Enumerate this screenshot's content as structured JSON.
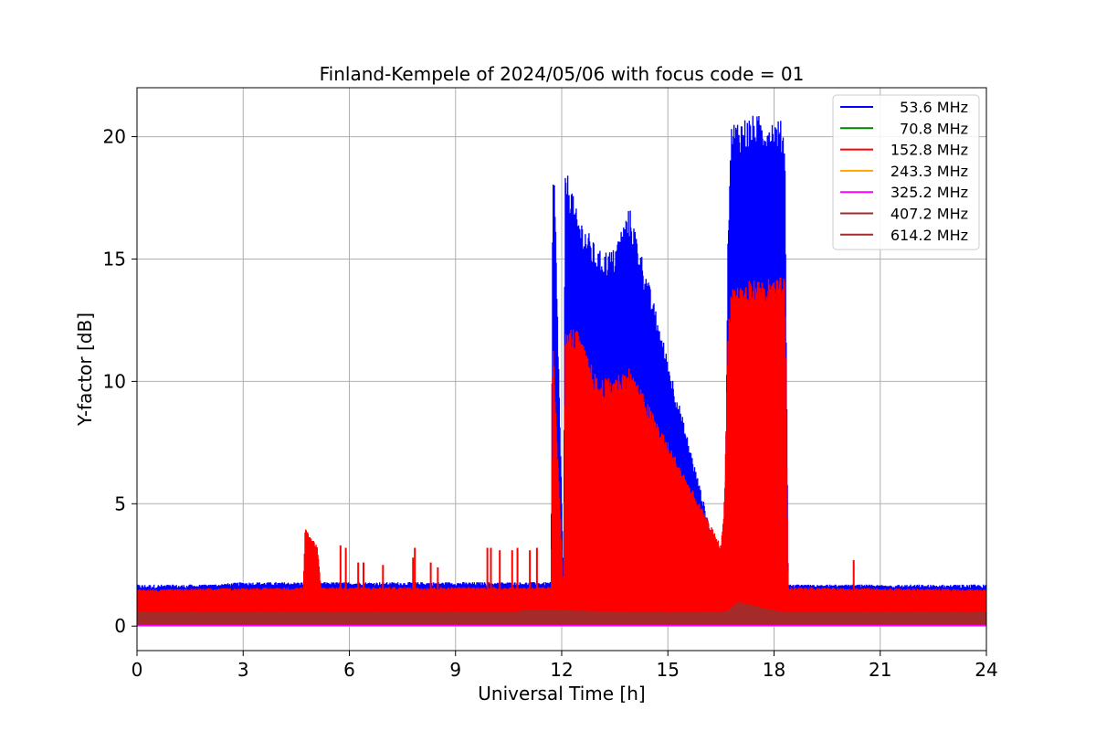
{
  "chart_data": {
    "type": "line",
    "title": "Finland-Kempele of 2024/05/06 with focus code = 01",
    "xlabel": "Universal Time [h]",
    "ylabel": "Y-factor [dB]",
    "xlim": [
      0,
      24
    ],
    "ylim": [
      -1,
      22
    ],
    "xticks": [
      "0",
      "3",
      "6",
      "9",
      "12",
      "15",
      "18",
      "21",
      "24"
    ],
    "yticks": [
      "0",
      "5",
      "10",
      "15",
      "20"
    ],
    "grid": true,
    "legend_position": "top-right",
    "series": [
      {
        "name": "53.6 MHz",
        "color": "#0000ff",
        "baseline": [
          1.0,
          1.7
        ],
        "x": [
          0,
          3,
          4.7,
          4.75,
          5.1,
          5.2,
          11.7,
          11.75,
          11.8,
          12.05,
          12.1,
          12.2,
          12.3,
          12.35,
          12.4,
          13.05,
          13.1,
          13.45,
          13.9,
          13.95,
          16.6,
          16.7,
          16.8,
          17.0,
          17.5,
          18.0,
          18.3,
          18.4,
          24
        ],
        "values": [
          1.5,
          1.8,
          1.8,
          1.0,
          1.7,
          1.8,
          1.8,
          18.4,
          18.2,
          1.8,
          18.7,
          18.4,
          17.9,
          17.3,
          17.1,
          15.3,
          15.4,
          15.4,
          17.1,
          17.0,
          1.7,
          16.5,
          20.6,
          20.8,
          20.9,
          20.8,
          20.6,
          1.7,
          1.6
        ]
      },
      {
        "name": "70.8 MHz",
        "color": "#008000",
        "baseline": [
          0.3,
          0.9
        ],
        "x": [
          0,
          4.7,
          4.75,
          5.1,
          5.2,
          16.5,
          16.55,
          16.6,
          16.7,
          24
        ],
        "values": [
          0.5,
          0.6,
          0.9,
          0.9,
          0.6,
          0.6,
          1.6,
          1.7,
          0.7,
          0.6
        ]
      },
      {
        "name": "152.8 MHz",
        "color": "#ff0000",
        "baseline": [
          0.4,
          1.5
        ],
        "x": [
          0,
          4.7,
          4.75,
          5.1,
          5.2,
          11.7,
          11.75,
          12.05,
          12.1,
          12.25,
          12.4,
          13.05,
          13.1,
          13.45,
          13.9,
          13.95,
          16.5,
          16.6,
          16.7,
          16.8,
          17.0,
          17.5,
          18.0,
          18.3,
          18.4,
          24
        ],
        "values": [
          1.5,
          1.6,
          4.0,
          3.3,
          1.6,
          1.6,
          11.8,
          1.6,
          12.0,
          12.2,
          12.2,
          10.0,
          10.1,
          10.2,
          10.6,
          10.5,
          3.3,
          5.2,
          12.3,
          14.0,
          14.0,
          14.2,
          14.2,
          14.3,
          1.6,
          1.5
        ]
      },
      {
        "name": "243.3 MHz",
        "color": "#ffa500",
        "baseline": [
          0.05,
          0.2
        ],
        "x": [
          0,
          24
        ],
        "values": [
          0.1,
          0.1
        ]
      },
      {
        "name": "325.2 MHz",
        "color": "#ff00ff",
        "baseline": [
          0.0,
          0.1
        ],
        "x": [
          0,
          24
        ],
        "values": [
          0.05,
          0.05
        ]
      },
      {
        "name": "407.2 MHz",
        "color": "#a52a2a",
        "baseline": [
          0.1,
          0.6
        ],
        "x": [
          0,
          10.5,
          11,
          16.5,
          17,
          18.5,
          24
        ],
        "values": [
          0.4,
          0.5,
          0.7,
          0.5,
          1.0,
          0.5,
          0.4
        ]
      },
      {
        "name": "614.2 MHz",
        "color": "#a52a2a",
        "baseline": [
          0.05,
          0.5
        ],
        "x": [
          0,
          24
        ],
        "values": [
          0.3,
          0.3
        ]
      }
    ],
    "spikes": [
      {
        "x": 5.75,
        "y": 3.3
      },
      {
        "x": 5.9,
        "y": 3.2
      },
      {
        "x": 6.25,
        "y": 2.6
      },
      {
        "x": 6.4,
        "y": 2.6
      },
      {
        "x": 6.95,
        "y": 2.5
      },
      {
        "x": 7.8,
        "y": 2.8
      },
      {
        "x": 7.85,
        "y": 3.2
      },
      {
        "x": 8.3,
        "y": 2.6
      },
      {
        "x": 8.5,
        "y": 2.4
      },
      {
        "x": 9.9,
        "y": 3.2
      },
      {
        "x": 10.0,
        "y": 3.2
      },
      {
        "x": 10.25,
        "y": 3.1
      },
      {
        "x": 10.6,
        "y": 3.1
      },
      {
        "x": 10.75,
        "y": 3.2
      },
      {
        "x": 11.1,
        "y": 3.1
      },
      {
        "x": 11.3,
        "y": 3.2
      },
      {
        "x": 12.6,
        "y": 2.6
      },
      {
        "x": 12.75,
        "y": 2.5
      },
      {
        "x": 14.1,
        "y": 3.0
      },
      {
        "x": 15.0,
        "y": 3.2
      },
      {
        "x": 15.7,
        "y": 3.3
      },
      {
        "x": 20.25,
        "y": 2.7
      }
    ]
  }
}
